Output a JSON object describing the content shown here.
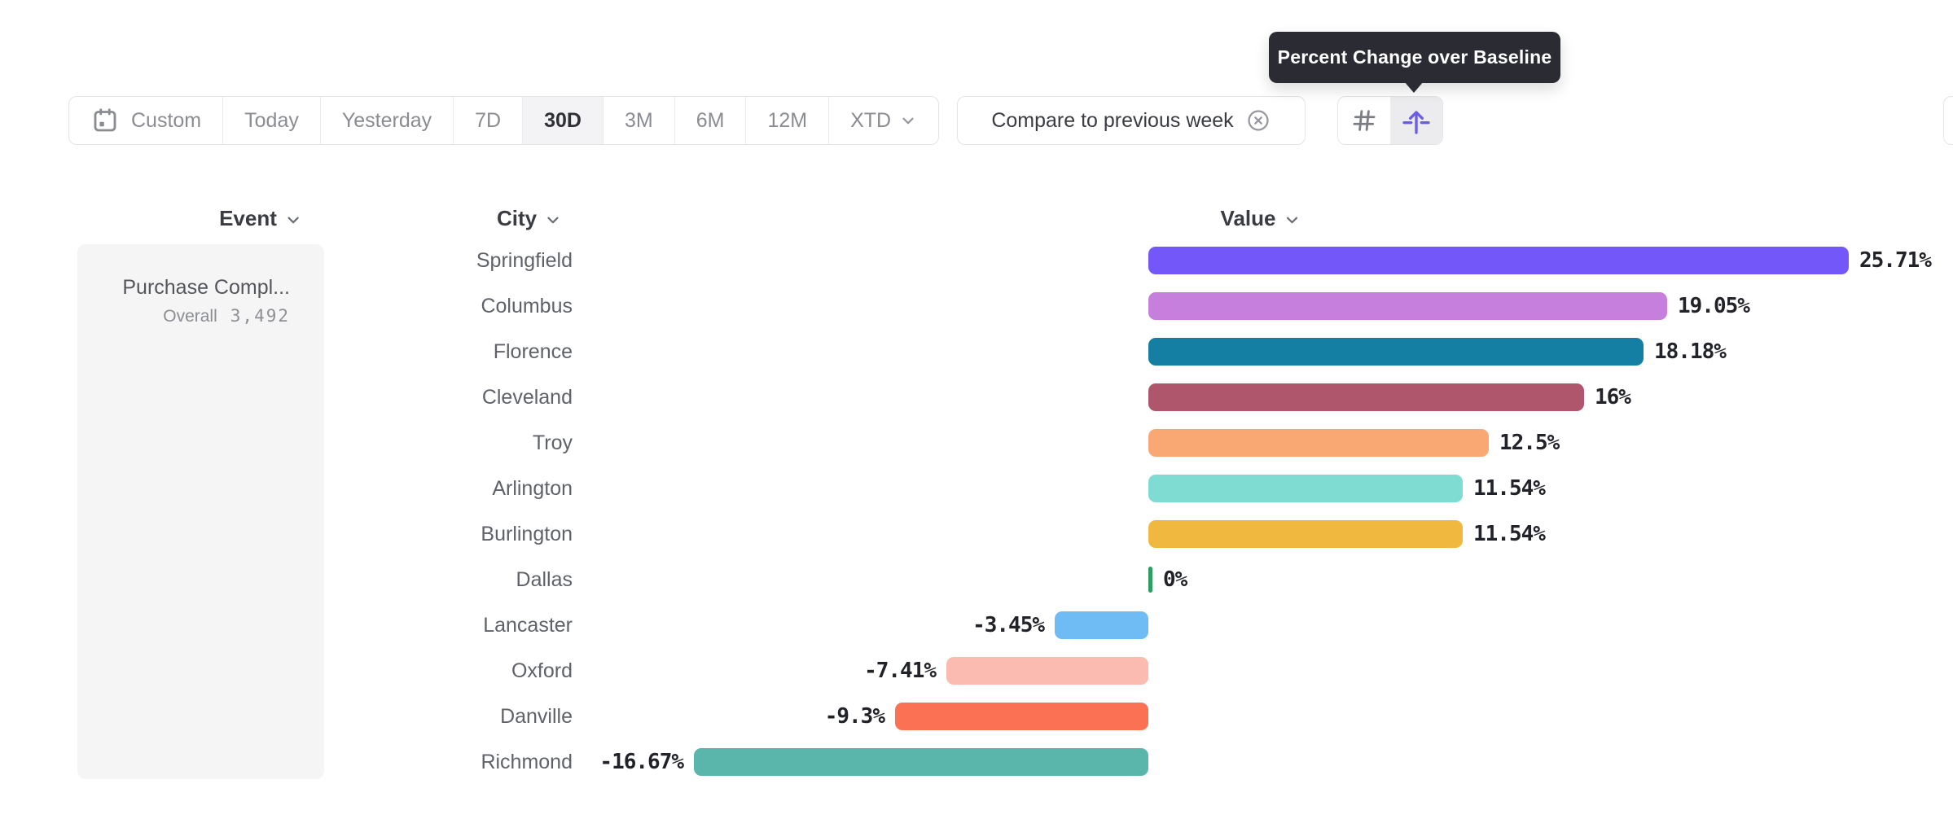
{
  "tooltip": {
    "text": "Percent Change over Baseline"
  },
  "toolbar": {
    "segments": [
      {
        "label": "Custom",
        "icon": "calendar",
        "selected": false
      },
      {
        "label": "Today",
        "selected": false
      },
      {
        "label": "Yesterday",
        "selected": false
      },
      {
        "label": "7D",
        "selected": false
      },
      {
        "label": "30D",
        "selected": true
      },
      {
        "label": "3M",
        "selected": false
      },
      {
        "label": "6M",
        "selected": false
      },
      {
        "label": "12M",
        "selected": false
      },
      {
        "label": "XTD",
        "icon_after": "chevron-down",
        "selected": false
      }
    ],
    "compare": {
      "label": "Compare to previous week",
      "clear_icon": "circle-x"
    },
    "view_toggles": [
      {
        "name": "absolute-numbers",
        "icon": "hash",
        "selected": false
      },
      {
        "name": "percent-change-baseline",
        "icon": "baseline-arrow",
        "selected": true
      }
    ]
  },
  "columns": {
    "event": "Event",
    "city": "City",
    "value": "Value"
  },
  "event_card": {
    "name": "Purchase Compl...",
    "overall_label": "Overall",
    "overall_value": "3,492"
  },
  "chart_data": {
    "type": "bar",
    "orientation": "horizontal",
    "categories": [
      "Springfield",
      "Columbus",
      "Florence",
      "Cleveland",
      "Troy",
      "Arlington",
      "Burlington",
      "Dallas",
      "Lancaster",
      "Oxford",
      "Danville",
      "Richmond"
    ],
    "values": [
      25.71,
      19.05,
      18.18,
      16,
      12.5,
      11.54,
      11.54,
      0,
      -3.45,
      -7.41,
      -9.3,
      -16.67
    ],
    "labels": [
      "25.71%",
      "19.05%",
      "18.18%",
      "16%",
      "12.5%",
      "11.54%",
      "11.54%",
      "0%",
      "-3.45%",
      "-7.41%",
      "-9.3%",
      "-16.67%"
    ],
    "colors": [
      "#7457F8",
      "#C67FDC",
      "#147FA3",
      "#B0566C",
      "#FAA873",
      "#7EDCD2",
      "#F1B83F",
      "#2E9D62",
      "#6FBCF4",
      "#FBBBB1",
      "#FB7154",
      "#5AB6AB"
    ],
    "xlim": [
      -16.67,
      25.71
    ],
    "unit": "%"
  },
  "theme": {
    "tooltip_bg": "#2B2B33",
    "accent_purple": "#6A5BE8",
    "border": "#E4E4E7",
    "selected_bg": "#F3F3F5",
    "muted_text": "#8A8C91",
    "dark_text": "#2E3035",
    "card_bg": "#F5F5F6"
  }
}
